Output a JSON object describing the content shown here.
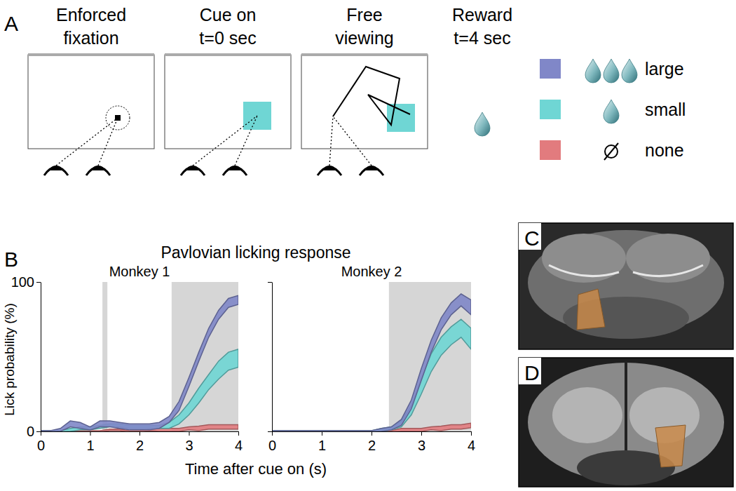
{
  "panel_labels": [
    "A",
    "B",
    "C",
    "D"
  ],
  "task": {
    "steps": [
      {
        "title": [
          "Enforced",
          "fixation"
        ]
      },
      {
        "title": [
          "Cue on",
          "t=0 sec"
        ]
      },
      {
        "title": [
          "Free",
          "viewing"
        ]
      },
      {
        "title": [
          "Reward",
          "t=4 sec"
        ]
      }
    ],
    "legend": [
      {
        "label": "large",
        "color": "#8087c8",
        "drops": 3
      },
      {
        "label": "small",
        "color": "#6fd6d4",
        "drops": 1
      },
      {
        "label": "none",
        "color": "#e27b7e",
        "drops": 0
      }
    ]
  },
  "figure_b": {
    "title": "Pavlovian licking response",
    "xlabel": "Time after cue on (s)"
  },
  "chart_data": [
    {
      "type": "line",
      "title": "Monkey 1",
      "ylabel": "Lick probability (%)",
      "x": [
        0,
        0.2,
        0.4,
        0.6,
        0.8,
        1,
        1.2,
        1.4,
        1.6,
        1.8,
        2,
        2.2,
        2.4,
        2.6,
        2.8,
        3,
        3.2,
        3.4,
        3.6,
        3.8,
        4
      ],
      "series": [
        {
          "color": "#8087c8",
          "values": [
            0,
            0,
            1,
            5,
            4,
            2,
            5,
            5,
            4,
            3,
            3,
            3,
            4,
            8,
            17,
            33,
            50,
            66,
            78,
            86,
            88
          ],
          "error": [
            0.5,
            0.5,
            1,
            2,
            2,
            1,
            2,
            2,
            2,
            2,
            2,
            2,
            2,
            2,
            3,
            3,
            3,
            3,
            3,
            3,
            3
          ]
        },
        {
          "color": "#6fd6d4",
          "values": [
            0,
            0,
            0,
            1,
            2,
            2,
            3,
            4,
            4,
            3,
            3,
            3,
            3,
            4,
            8,
            15,
            24,
            33,
            41,
            47,
            49
          ],
          "error": [
            0.5,
            0.5,
            0.5,
            1,
            1,
            1,
            1,
            1,
            1,
            1,
            1,
            1,
            1,
            2,
            3,
            4,
            5,
            5,
            6,
            6,
            6
          ]
        },
        {
          "color": "#e27b7e",
          "values": [
            0,
            0,
            0,
            0,
            0,
            0,
            0,
            1,
            1,
            0,
            0,
            1,
            1,
            1,
            1,
            2,
            2,
            3,
            3,
            3,
            3
          ],
          "error": [
            0.5,
            0.5,
            0.5,
            0.5,
            0.5,
            0.5,
            0.5,
            0.5,
            0.5,
            0.5,
            0.5,
            0.5,
            1,
            1,
            1,
            1,
            1.5,
            1.5,
            1.5,
            1.5,
            1.5
          ]
        }
      ],
      "shaded": [
        [
          1.25,
          1.35
        ],
        [
          2.65,
          4
        ]
      ],
      "xlim": [
        0,
        4
      ],
      "ylim": [
        0,
        100
      ],
      "xticks": [
        0,
        1,
        2,
        3,
        4
      ],
      "yticks": [
        0,
        100
      ]
    },
    {
      "type": "line",
      "title": "Monkey 2",
      "x": [
        0,
        0.2,
        0.4,
        0.6,
        0.8,
        1,
        1.2,
        1.4,
        1.6,
        1.8,
        2,
        2.2,
        2.4,
        2.6,
        2.8,
        3,
        3.2,
        3.4,
        3.6,
        3.8,
        4
      ],
      "series": [
        {
          "color": "#8087c8",
          "values": [
            0,
            0,
            0,
            0,
            0,
            0,
            0,
            0,
            0,
            0,
            0,
            1,
            2,
            6,
            18,
            38,
            57,
            72,
            82,
            88,
            83
          ],
          "error": [
            0.5,
            0.5,
            0.5,
            0.5,
            0.5,
            0.5,
            0.5,
            0.5,
            0.5,
            0.5,
            0.5,
            1,
            1,
            2,
            3,
            4,
            4,
            4,
            4,
            4,
            5
          ]
        },
        {
          "color": "#6fd6d4",
          "values": [
            0,
            0,
            0,
            0,
            0,
            0,
            0,
            0,
            0,
            0,
            0,
            1,
            2,
            5,
            14,
            30,
            46,
            57,
            64,
            69,
            62
          ],
          "error": [
            0.5,
            0.5,
            0.5,
            0.5,
            0.5,
            0.5,
            0.5,
            0.5,
            0.5,
            0.5,
            0.5,
            1,
            1,
            2,
            3,
            5,
            6,
            6,
            6,
            6,
            7
          ]
        },
        {
          "color": "#e27b7e",
          "values": [
            0,
            0,
            0,
            0,
            0,
            0,
            0,
            0,
            0,
            0,
            0,
            0,
            0,
            1,
            1,
            1,
            2,
            2,
            3,
            3,
            4
          ],
          "error": [
            0.5,
            0.5,
            0.5,
            0.5,
            0.5,
            0.5,
            0.5,
            0.5,
            0.5,
            0.5,
            0.5,
            0.5,
            0.5,
            1,
            1,
            1,
            1,
            1.5,
            1.5,
            1.5,
            1.5
          ]
        }
      ],
      "shaded": [
        [
          2.35,
          4
        ]
      ],
      "xlim": [
        0,
        4
      ],
      "ylim": [
        0,
        100
      ],
      "xticks": [
        0,
        1,
        2,
        3,
        4
      ],
      "yticks": [
        0,
        100
      ],
      "tick_labels": "x"
    }
  ]
}
